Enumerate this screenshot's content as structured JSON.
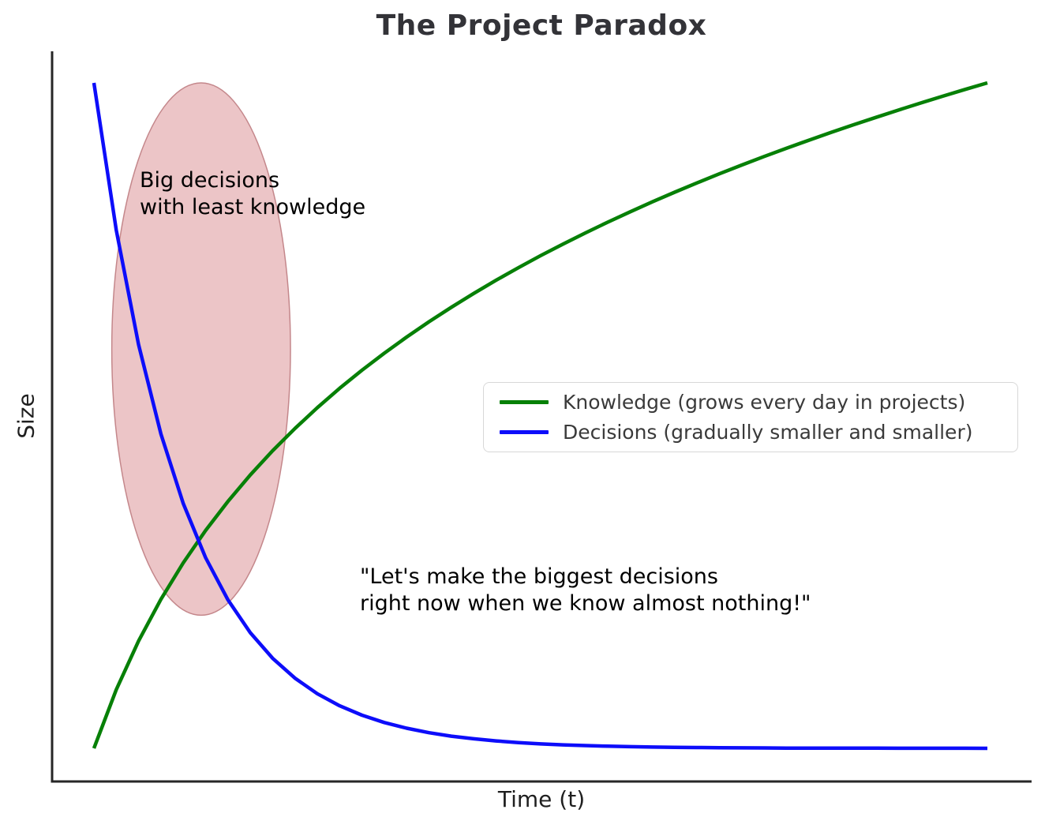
{
  "chart_data": {
    "type": "line",
    "title": "The Project Paradox",
    "xlabel": "Time (t)",
    "ylabel": "Size",
    "xlim": [
      0,
      10
    ],
    "ylim": [
      0,
      1
    ],
    "grid": false,
    "ticks_visible": false,
    "spine_color": "#262626",
    "legend_position": "center-right",
    "x": [
      0,
      0.25,
      0.5,
      0.75,
      1,
      1.25,
      1.5,
      1.75,
      2,
      2.25,
      2.5,
      2.75,
      3,
      3.25,
      3.5,
      3.75,
      4,
      4.25,
      4.5,
      4.75,
      5,
      5.25,
      5.5,
      5.75,
      6,
      6.25,
      6.5,
      6.75,
      7,
      7.25,
      7.5,
      7.75,
      8,
      8.25,
      8.5,
      8.75,
      9,
      9.25,
      9.5,
      9.75,
      10
    ],
    "series": [
      {
        "name": "Knowledge",
        "label": "Knowledge (grows every day in projects)",
        "color": "#078007",
        "values": [
          0.0,
          0.0881,
          0.1614,
          0.224,
          0.2788,
          0.3274,
          0.3711,
          0.4108,
          0.4472,
          0.4807,
          0.5119,
          0.541,
          0.5682,
          0.5938,
          0.618,
          0.641,
          0.6628,
          0.6835,
          0.7033,
          0.7222,
          0.7404,
          0.7578,
          0.7745,
          0.7906,
          0.8062,
          0.8212,
          0.8357,
          0.8497,
          0.8633,
          0.8765,
          0.8893,
          0.9017,
          0.9138,
          0.9256,
          0.937,
          0.9481,
          0.959,
          0.9696,
          0.98,
          0.9901,
          1.0
        ]
      },
      {
        "name": "Decisions",
        "label": "Decisions (gradually smaller and smaller)",
        "color": "#0d0dfa",
        "values": [
          1.0,
          0.7788,
          0.6065,
          0.4724,
          0.3679,
          0.2865,
          0.2231,
          0.1738,
          0.1353,
          0.1054,
          0.0821,
          0.0639,
          0.0498,
          0.0388,
          0.0302,
          0.0235,
          0.0183,
          0.0143,
          0.0111,
          0.0087,
          0.0067,
          0.0052,
          0.0041,
          0.0032,
          0.0025,
          0.0019,
          0.0015,
          0.0012,
          0.0009,
          0.0007,
          0.0006,
          0.0004,
          0.0003,
          0.0003,
          0.0002,
          0.0002,
          0.0001,
          0.0001,
          0.0001,
          0.0001,
          0.0
        ]
      }
    ],
    "annotations": [
      {
        "id": "big-decisions",
        "text": "Big decisions\nwith least knowledge",
        "color": "#000000"
      },
      {
        "id": "quote",
        "text": "\"Let's make the biggest decisions\nright now when we know almost nothing!\"",
        "color": "#000000"
      }
    ],
    "highlight_ellipse": {
      "cx": 1.2,
      "cy": 0.6,
      "rx": 1.0,
      "ry": 0.4,
      "fill": "#ecc5c7",
      "stroke": "#c4878b"
    }
  }
}
